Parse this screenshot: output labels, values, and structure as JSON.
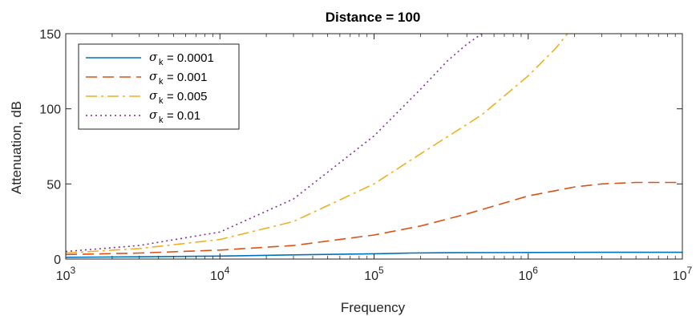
{
  "chart_data": {
    "type": "line",
    "title": "Distance = 100",
    "xlabel": "Frequency",
    "ylabel": "Attenuation, dB",
    "x_scale": "log",
    "xlim": [
      1000,
      10000000
    ],
    "ylim": [
      0,
      150
    ],
    "x_ticks": [
      {
        "value": 1000,
        "base": "10",
        "exp": "3"
      },
      {
        "value": 10000,
        "base": "10",
        "exp": "4"
      },
      {
        "value": 100000,
        "base": "10",
        "exp": "5"
      },
      {
        "value": 1000000,
        "base": "10",
        "exp": "6"
      },
      {
        "value": 10000000,
        "base": "10",
        "exp": "7"
      }
    ],
    "y_ticks": [
      0,
      50,
      100,
      150
    ],
    "grid": false,
    "legend_position": "top-left",
    "legend_symbol": "σ",
    "legend_subscript": "k",
    "series": [
      {
        "name": "= 0.0001",
        "color": "#0072BD",
        "style": "solid",
        "x": [
          1000,
          3000,
          10000,
          30000,
          100000,
          170000,
          300000,
          1000000,
          3000000,
          10000000
        ],
        "y": [
          1.2,
          1.5,
          2.0,
          2.8,
          3.5,
          4.0,
          4.2,
          4.4,
          4.5,
          4.5
        ]
      },
      {
        "name": "= 0.001",
        "color": "#D95319",
        "style": "dashed",
        "x": [
          1000,
          3000,
          10000,
          30000,
          100000,
          200000,
          400000,
          1000000,
          2000000,
          3000000,
          5000000,
          10000000
        ],
        "y": [
          3,
          4,
          6,
          9,
          16,
          22,
          30,
          42,
          48,
          50,
          51,
          51
        ]
      },
      {
        "name": "= 0.005",
        "color": "#EDB120",
        "style": "dashdot",
        "x": [
          1000,
          3000,
          10000,
          30000,
          100000,
          200000,
          500000,
          1000000,
          1500000,
          1800000
        ],
        "y": [
          4,
          7,
          13,
          25,
          50,
          70,
          96,
          122,
          140,
          150
        ]
      },
      {
        "name": "= 0.01",
        "color": "#7E2F8E",
        "style": "dotted",
        "x": [
          1000,
          3000,
          10000,
          30000,
          100000,
          200000,
          300000,
          400000,
          500000
        ],
        "y": [
          5,
          9,
          18,
          40,
          82,
          113,
          132,
          143,
          150
        ]
      }
    ]
  }
}
